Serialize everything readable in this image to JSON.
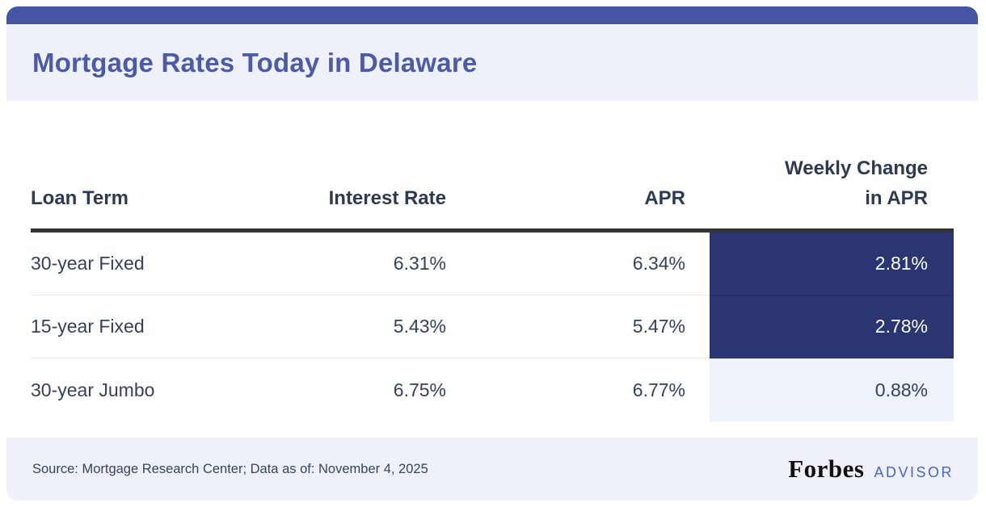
{
  "title": "Mortgage Rates Today in Delaware",
  "table": {
    "columns": [
      {
        "label": "Loan Term"
      },
      {
        "label": "Interest Rate"
      },
      {
        "label": "APR"
      },
      {
        "label_line1": "Weekly Change",
        "label_line2": "in APR"
      }
    ],
    "rows": [
      {
        "loan_term": "30-year Fixed",
        "interest_rate": "6.31%",
        "apr": "6.34%",
        "weekly_change": "2.81%"
      },
      {
        "loan_term": "15-year Fixed",
        "interest_rate": "5.43%",
        "apr": "5.47%",
        "weekly_change": "2.78%"
      },
      {
        "loan_term": "30-year Jumbo",
        "interest_rate": "6.75%",
        "apr": "6.77%",
        "weekly_change": "0.88%"
      }
    ]
  },
  "footer": {
    "source": "Source: Mortgage Research Center; Data as of: November 4, 2025",
    "brand": "Forbes",
    "brand_suffix": "ADVISOR"
  },
  "colors": {
    "top_bar": "#4456a4",
    "title_text": "#4b5aa9",
    "band_background": "#eef1f9",
    "header_text": "#2e3a52",
    "body_text": "#35415a",
    "header_rule": "#333333",
    "highlight_cell_background": "#2b3572",
    "highlight_cell_text": "#ffffff",
    "light_cell_background": "#eef2fb",
    "advisor_text": "#4b64cd",
    "forbes_text": "#121212"
  },
  "chart_data": {
    "type": "table",
    "title": "Mortgage Rates Today in Delaware",
    "columns": [
      "Loan Term",
      "Interest Rate",
      "APR",
      "Weekly Change in APR"
    ],
    "rows": [
      [
        "30-year Fixed",
        "6.31%",
        "6.34%",
        "2.81%"
      ],
      [
        "15-year Fixed",
        "5.43%",
        "5.47%",
        "2.78%"
      ],
      [
        "30-year Jumbo",
        "6.75%",
        "6.77%",
        "0.88%"
      ]
    ],
    "highlight": "Weekly Change in APR cells for 30-year Fixed and 15-year Fixed have dark navy background with white text; 30-year Jumbo cell has light lavender background",
    "source": "Source: Mortgage Research Center; Data as of: November 4, 2025"
  }
}
